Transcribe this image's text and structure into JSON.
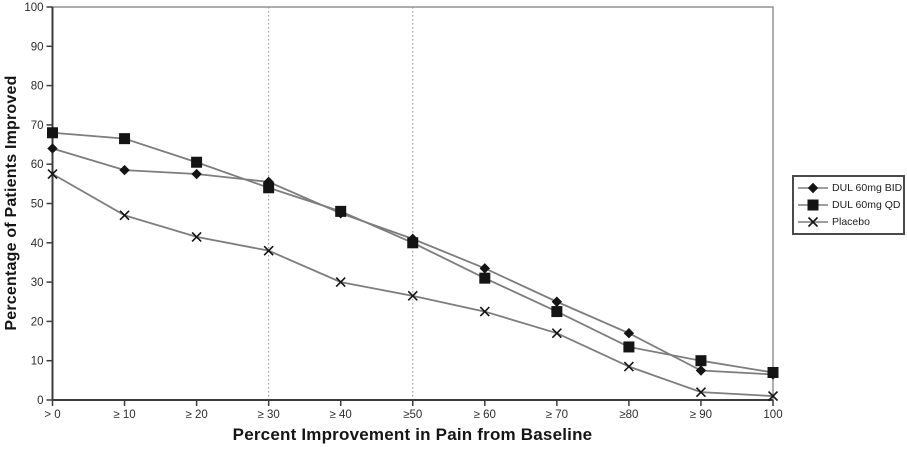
{
  "chart_data": {
    "type": "line",
    "title": "",
    "xlabel": "Percent Improvement in Pain from Baseline",
    "ylabel": "Percentage of Patients Improved",
    "categories": [
      "> 0",
      "≥ 10",
      "≥ 20",
      "≥ 30",
      "≥ 40",
      "≥50",
      "≥ 60",
      "≥ 70",
      "≥80",
      "≥ 90",
      "100"
    ],
    "y_ticks": [
      0,
      10,
      20,
      30,
      40,
      50,
      60,
      70,
      80,
      90,
      100
    ],
    "ylim": [
      0,
      100
    ],
    "grid": "vertical dashed reference lines only",
    "reference_lines": [
      "≥ 30",
      "≥50"
    ],
    "legend_position": "outside-right",
    "series": [
      {
        "name": "DUL 60mg BID",
        "marker": "diamond",
        "values": [
          64,
          58.5,
          57.5,
          55.5,
          47.5,
          41,
          33.5,
          25,
          17,
          7.5,
          6.5
        ]
      },
      {
        "name": "DUL 60mg QD",
        "marker": "square",
        "values": [
          68,
          66.5,
          60.5,
          54,
          48,
          40,
          31,
          22.5,
          13.5,
          10,
          7
        ]
      },
      {
        "name": "Placebo",
        "marker": "x",
        "values": [
          57.5,
          47,
          41.5,
          38,
          30,
          26.5,
          22.5,
          17,
          8.5,
          2,
          1
        ]
      }
    ],
    "colors": {
      "line": "#7d7d7d",
      "marker": "#141414",
      "axis": "#3c3c3c",
      "frame": "#8c8c8c",
      "grid": "#8c8c8c",
      "background": "#ffffff"
    }
  }
}
